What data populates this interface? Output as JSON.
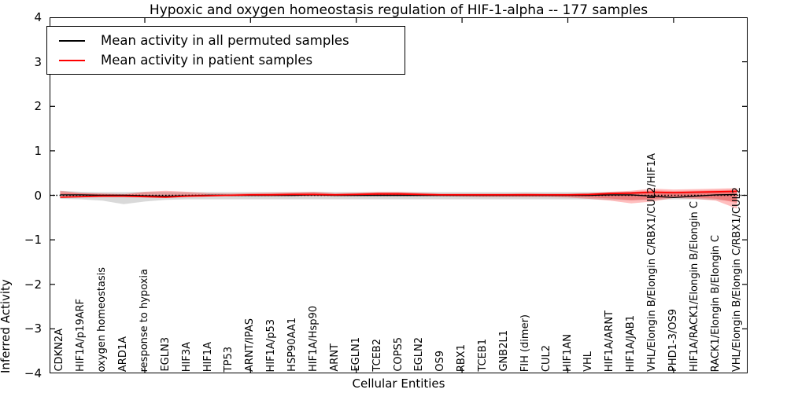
{
  "chart_data": {
    "type": "line",
    "title": "Hypoxic and oxygen homeostasis regulation of HIF-1-alpha -- 177 samples",
    "samples": 177,
    "xlabel": "Cellular Entities",
    "ylabel": "Inferred Activity",
    "ylim": [
      -4,
      4
    ],
    "yticks": [
      -4,
      -3,
      -2,
      -1,
      0,
      1,
      2,
      3,
      4
    ],
    "xlim": [
      0.5,
      33.5
    ],
    "xtick_positions": [
      5,
      10,
      15,
      20,
      25,
      30
    ],
    "grid": false,
    "zero_reference_line": 0,
    "legend": {
      "position": "upper left",
      "items": [
        {
          "label": "Mean activity in all permuted samples",
          "color": "#000000"
        },
        {
          "label": "Mean activity in patient samples",
          "color": "#ff0000"
        }
      ]
    },
    "categories": [
      "CDKN2A",
      "HIF1A/p19ARF",
      "oxygen homeostasis",
      "ARD1A",
      "response to hypoxia",
      "EGLN3",
      "HIF3A",
      "HIF1A",
      "TP53",
      "ARNT/IPAS",
      "HIF1A/p53",
      "HSP90AA1",
      "HIF1A/Hsp90",
      "ARNT",
      "EGLN1",
      "TCEB2",
      "COPS5",
      "EGLN2",
      "OS9",
      "RBX1",
      "TCEB1",
      "GNB2L1",
      "FIH (dimer)",
      "CUL2",
      "HIF1AN",
      "VHL",
      "HIF1A/ARNT",
      "HIF1A/JAB1",
      "VHL/Elongin B/Elongin C/RBX1/CUL2/HIF1A",
      "PHD1-3/OS9",
      "HIF1A/RACK1/Elongin B/Elongin C",
      "RACK1/Elongin B/Elongin C",
      "VHL/Elongin B/Elongin C/RBX1/CUL2"
    ],
    "series": [
      {
        "name": "Mean activity in all permuted samples",
        "color": "#000000",
        "line_width": 1.4,
        "band_color": "rgba(120,120,120,0.28)",
        "values": [
          0.01,
          0.01,
          0,
          0,
          -0.01,
          -0.02,
          -0.01,
          0,
          0,
          0,
          0,
          0,
          0.01,
          0,
          0,
          0,
          0,
          0,
          0,
          0,
          0,
          0,
          0,
          0,
          0,
          0,
          0.01,
          0.01,
          -0.02,
          -0.05,
          -0.02,
          0.01,
          0.02
        ],
        "band_upper": [
          0.1,
          0.08,
          0.07,
          0.07,
          0.08,
          0.08,
          0.07,
          0.07,
          0.07,
          0.07,
          0.07,
          0.07,
          0.08,
          0.07,
          0.07,
          0.07,
          0.07,
          0.07,
          0.07,
          0.07,
          0.07,
          0.07,
          0.07,
          0.07,
          0.07,
          0.07,
          0.07,
          0.08,
          0.08,
          0.06,
          0.06,
          0.08,
          0.09
        ],
        "band_lower": [
          -0.14,
          -0.1,
          -0.09,
          -0.09,
          -0.1,
          -0.11,
          -0.1,
          -0.09,
          -0.09,
          -0.09,
          -0.09,
          -0.09,
          -0.09,
          -0.09,
          -0.09,
          -0.09,
          -0.09,
          -0.09,
          -0.09,
          -0.09,
          -0.09,
          -0.09,
          -0.09,
          -0.09,
          -0.09,
          -0.09,
          -0.09,
          -0.1,
          -0.14,
          -0.2,
          -0.12,
          -0.09,
          -0.08
        ]
      },
      {
        "name": "Mean activity in patient samples",
        "color": "#ff0000",
        "line_width": 1.8,
        "band_color": "rgba(255,40,40,0.30)",
        "values": [
          -0.04,
          -0.03,
          -0.02,
          -0.02,
          -0.03,
          -0.04,
          -0.02,
          -0.01,
          0,
          0.01,
          0.01,
          0.02,
          0.02,
          0.01,
          0.02,
          0.03,
          0.03,
          0.02,
          0.01,
          0.01,
          0.01,
          0.01,
          0.01,
          0.01,
          0.01,
          0.02,
          0.04,
          0.05,
          0.07,
          0.06,
          0.07,
          0.08,
          0.09
        ],
        "band_upper": [
          0.1,
          0.05,
          0.03,
          0.02,
          0.08,
          0.1,
          0.08,
          0.05,
          0.04,
          0.05,
          0.06,
          0.07,
          0.08,
          0.05,
          0.06,
          0.08,
          0.08,
          0.06,
          0.04,
          0.04,
          0.04,
          0.04,
          0.05,
          0.04,
          0.04,
          0.05,
          0.08,
          0.1,
          0.15,
          0.13,
          0.14,
          0.15,
          0.16
        ],
        "band_lower": [
          -0.3,
          -0.12,
          -0.08,
          -0.06,
          -0.14,
          -0.18,
          -0.12,
          -0.08,
          -0.05,
          -0.04,
          -0.04,
          -0.04,
          -0.04,
          -0.03,
          -0.02,
          -0.02,
          -0.02,
          -0.02,
          -0.02,
          -0.02,
          -0.02,
          -0.02,
          -0.02,
          -0.02,
          -0.02,
          -0.01,
          0,
          0,
          0,
          0,
          0.01,
          0.02,
          0.02
        ]
      }
    ]
  }
}
